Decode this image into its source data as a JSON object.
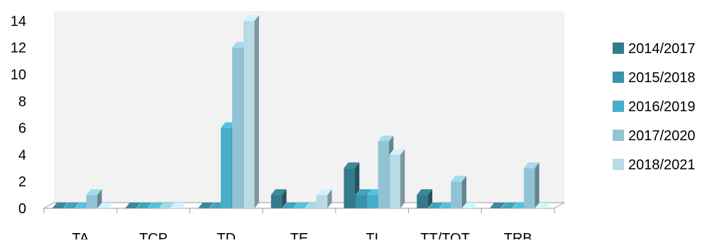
{
  "chart_data": {
    "type": "bar",
    "style": "3d-clustered-column",
    "title": "",
    "xlabel": "",
    "ylabel": "",
    "categories": [
      "TA",
      "TCP",
      "TD",
      "TE",
      "TI",
      "TT/TOT",
      "TRB"
    ],
    "series": [
      {
        "name": "2014/2017",
        "values": [
          0,
          0,
          0,
          1,
          3,
          1,
          0
        ],
        "color": "#357a8c"
      },
      {
        "name": "2015/2018",
        "values": [
          0,
          0,
          0,
          0,
          1,
          0,
          0
        ],
        "color": "#3a92a9"
      },
      {
        "name": "2016/2019",
        "values": [
          0,
          0,
          6,
          0,
          1,
          0,
          0
        ],
        "color": "#47aecb"
      },
      {
        "name": "2017/2020",
        "values": [
          1,
          0,
          12,
          0,
          5,
          2,
          3
        ],
        "color": "#92c3d4"
      },
      {
        "name": "2018/2021",
        "values": [
          0,
          0,
          14,
          1,
          4,
          0,
          0
        ],
        "color": "#b8dbe6"
      }
    ],
    "ylim": [
      0,
      14
    ],
    "yticks": [
      0,
      2,
      4,
      6,
      8,
      10,
      12,
      14
    ],
    "grid": false,
    "legend": "right",
    "wall_color": "#f2f2f2"
  }
}
